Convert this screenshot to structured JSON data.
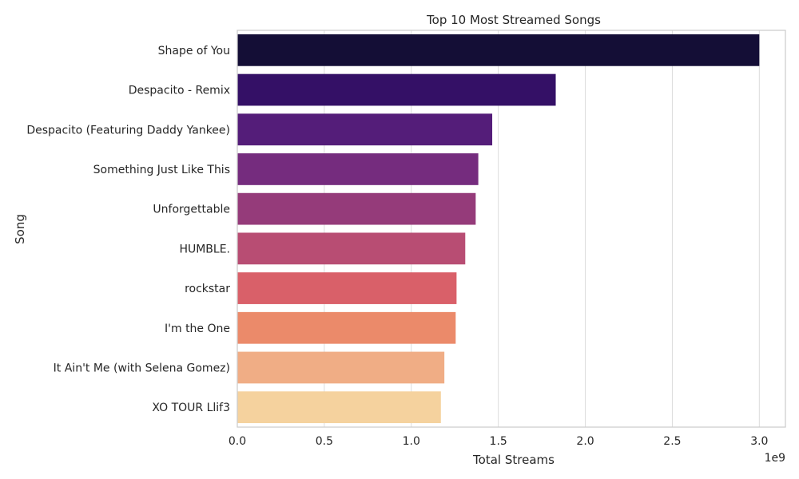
{
  "chart_data": {
    "type": "bar",
    "orientation": "horizontal",
    "title": "Top 10 Most Streamed Songs",
    "xlabel": "Total Streams",
    "ylabel": "Song",
    "offset_label": "1e9",
    "xlim": [
      0,
      3.15
    ],
    "x_ticks": [
      0.0,
      0.5,
      1.0,
      1.5,
      2.0,
      2.5,
      3.0
    ],
    "x_tick_labels": [
      "0.0",
      "0.5",
      "1.0",
      "1.5",
      "2.0",
      "2.5",
      "3.0"
    ],
    "grid": true,
    "categories": [
      "Shape of You",
      "Despacito - Remix",
      "Despacito (Featuring Daddy Yankee)",
      "Something Just Like This",
      "Unforgettable",
      "HUMBLE.",
      "rockstar",
      "I'm the One",
      "It Ain't Me (with Selena Gomez)",
      "XO TOUR Llif3"
    ],
    "values": [
      3.0,
      1.83,
      1.465,
      1.385,
      1.37,
      1.31,
      1.26,
      1.255,
      1.19,
      1.17
    ],
    "colors": [
      "#140e36",
      "#341066",
      "#541d79",
      "#752c7e",
      "#953b7a",
      "#b84d73",
      "#d96069",
      "#eb8a6a",
      "#f0ad85",
      "#f5d29e"
    ]
  }
}
